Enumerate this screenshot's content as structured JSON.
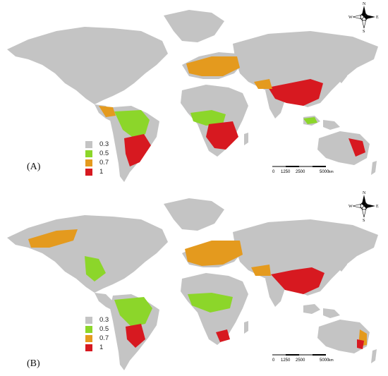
{
  "legend": {
    "items": [
      {
        "label": "0.3",
        "color": "#c4c4c4"
      },
      {
        "label": "0.5",
        "color": "#8cd62a"
      },
      {
        "label": "0.7",
        "color": "#e49a1e"
      },
      {
        "label": "1",
        "color": "#d71920"
      }
    ]
  },
  "panels": [
    {
      "label": "(A)"
    },
    {
      "label": "(B)"
    }
  ],
  "scalebar": {
    "ticks": [
      "0",
      "1250",
      "2500",
      "5000"
    ],
    "unit": "km"
  },
  "compass": {
    "n": "N",
    "s": "S",
    "e": "E",
    "w": "W"
  }
}
